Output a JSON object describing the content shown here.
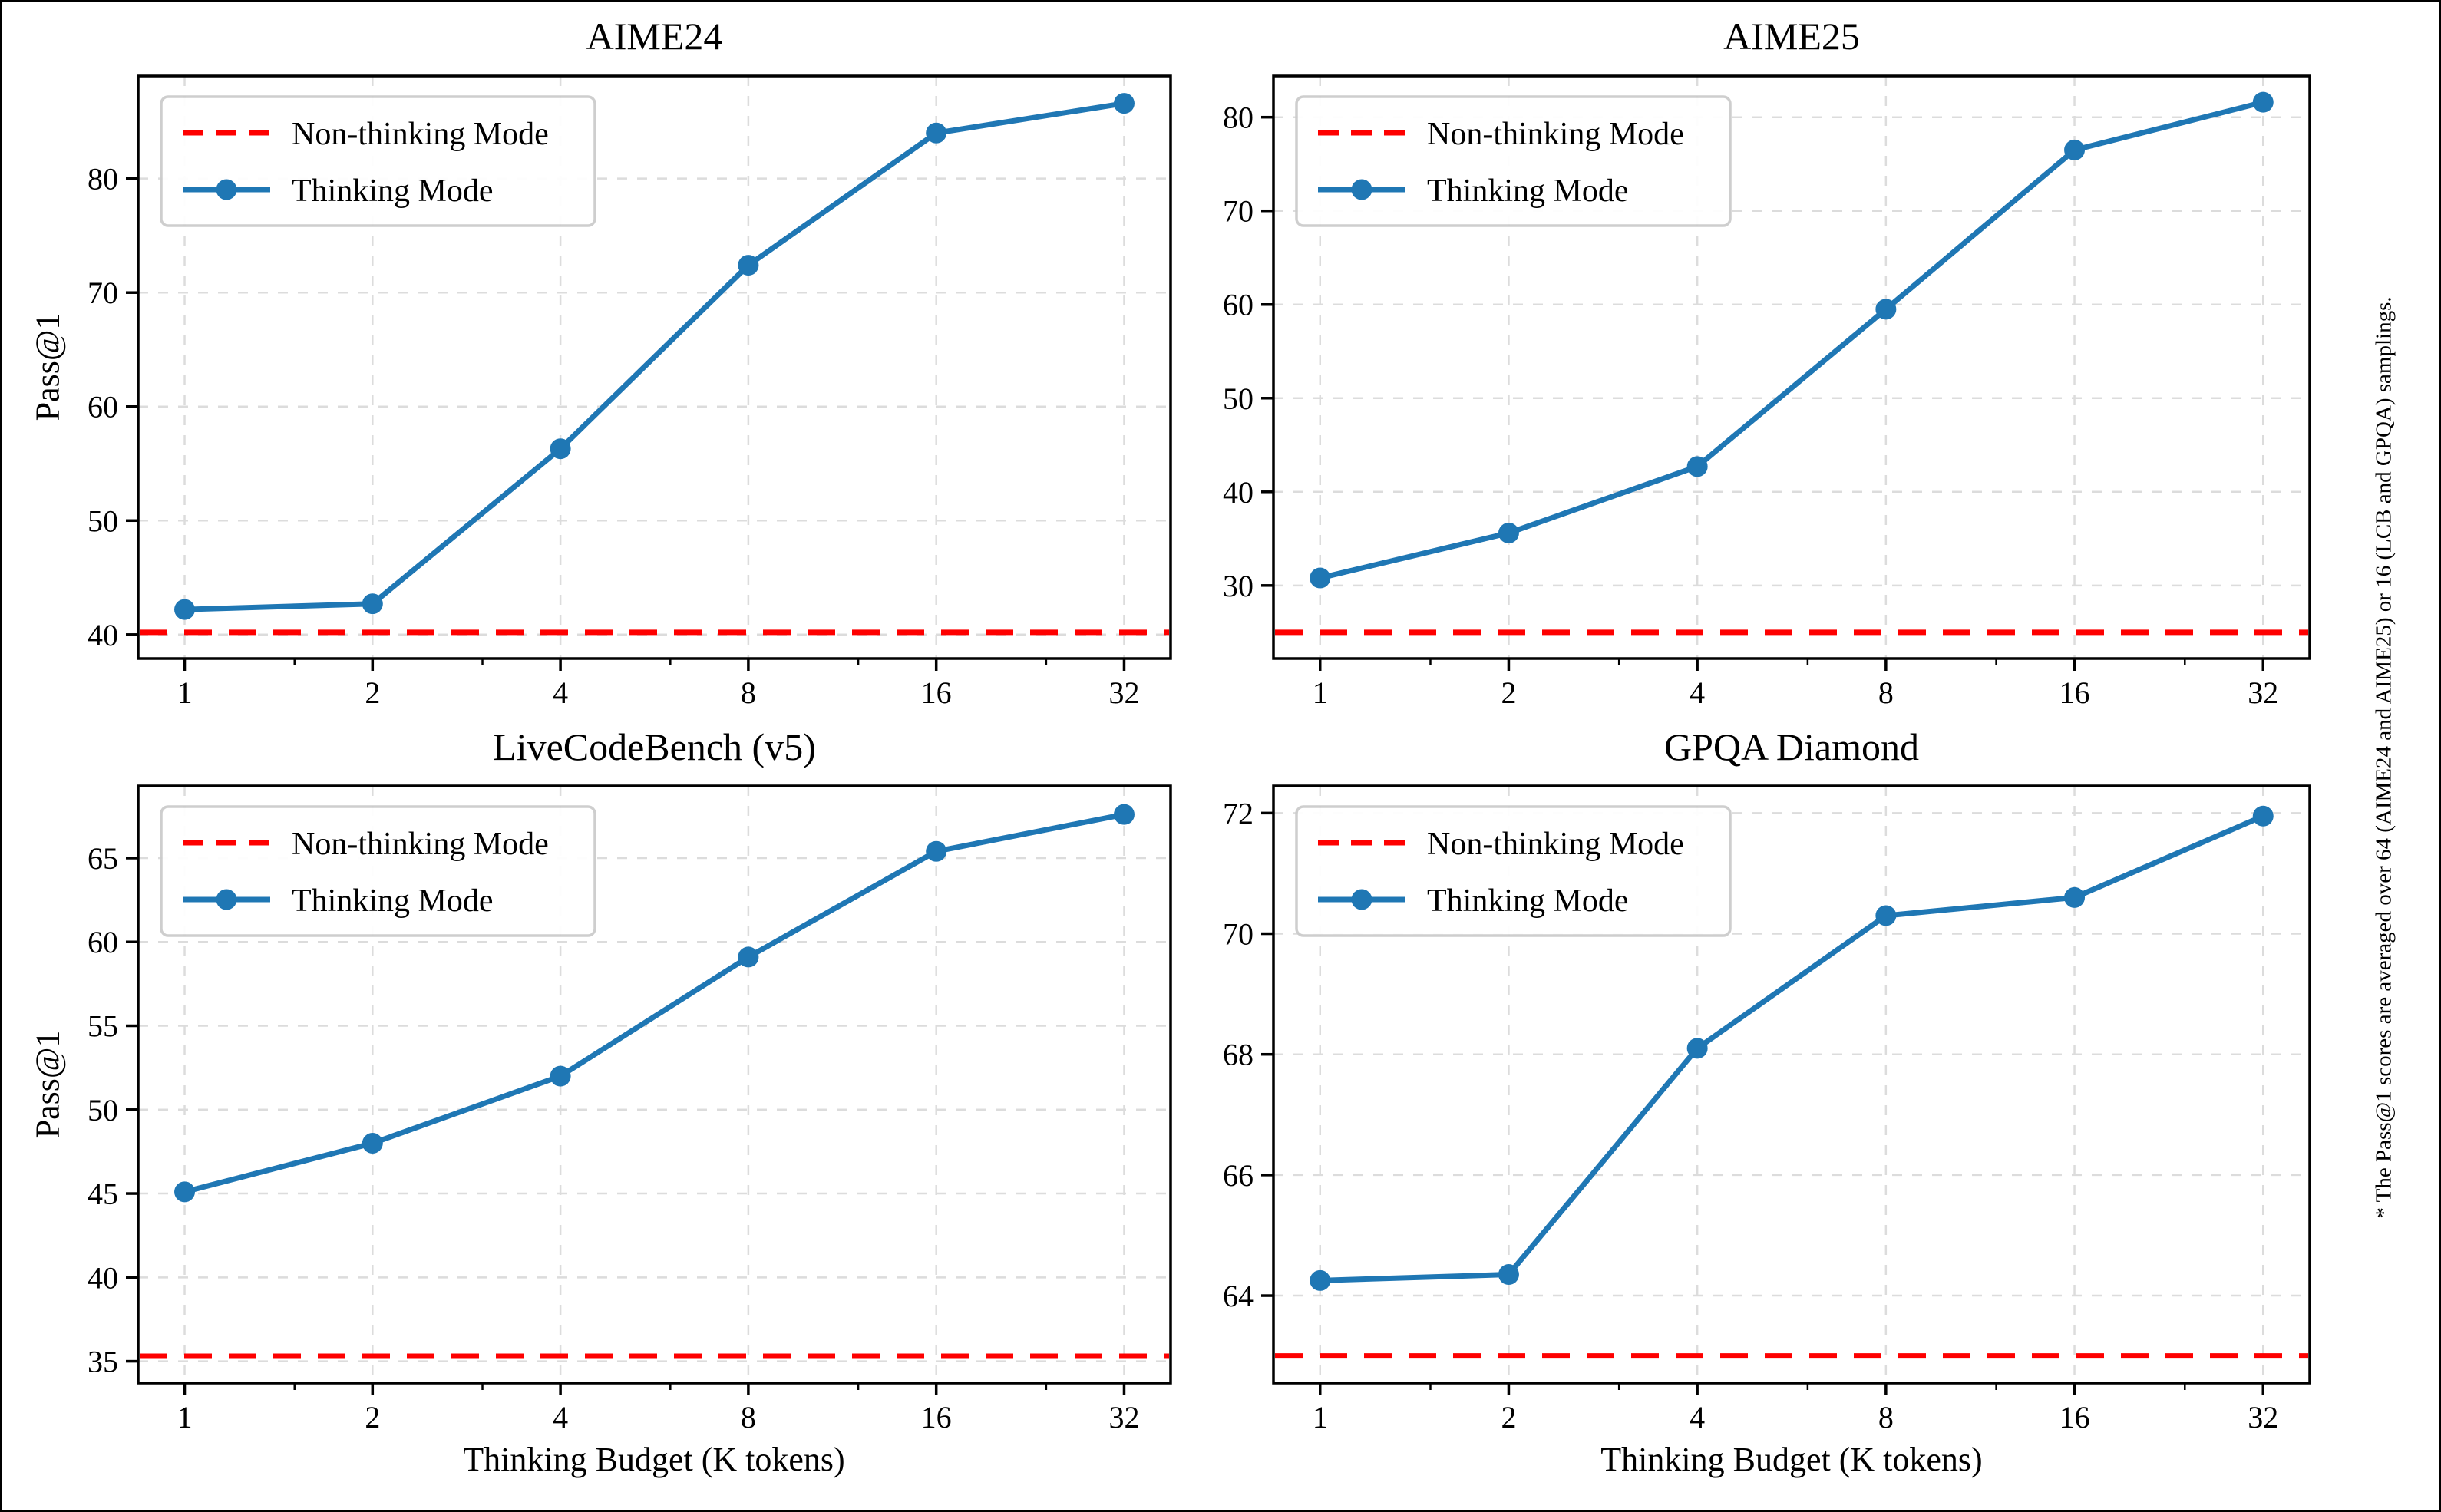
{
  "figure": {
    "caption": "* The Pass@1 scores are averaged over 64 (AIME24 and AIME25) or 16 (LCB and GPQA) samplings.",
    "ylabel": "Pass@1",
    "xlabel": "Thinking Budget (K tokens)"
  },
  "legend": {
    "non_thinking": "Non-thinking Mode",
    "thinking": "Thinking Mode"
  },
  "colors": {
    "thinking_line": "#1f77b4",
    "non_thinking_line": "#fe0000",
    "grid": "#dcdcdc",
    "axis": "#000000",
    "legend_border": "#cccccc",
    "background": "#ffffff"
  },
  "chart_data": [
    {
      "type": "line",
      "title": "AIME24",
      "ylabel": "Pass@1",
      "xscale": "log2",
      "grid": true,
      "legend_position": "upper left",
      "x": [
        1,
        2,
        4,
        8,
        16,
        32
      ],
      "xticklabels": [
        "1",
        "2",
        "4",
        "8",
        "16",
        "32"
      ],
      "series": [
        {
          "name": "Thinking Mode",
          "style": "solid-circle-markers",
          "values": [
            42.2,
            42.7,
            56.3,
            72.4,
            84.0,
            86.6
          ]
        },
        {
          "name": "Non-thinking Mode",
          "style": "dashed-horizontal-baseline",
          "value": 40.2
        }
      ],
      "yticks": [
        40,
        50,
        60,
        70,
        80
      ],
      "ylim": [
        37.9,
        89.0
      ]
    },
    {
      "type": "line",
      "title": "AIME25",
      "xscale": "log2",
      "grid": true,
      "legend_position": "upper left",
      "x": [
        1,
        2,
        4,
        8,
        16,
        32
      ],
      "xticklabels": [
        "1",
        "2",
        "4",
        "8",
        "16",
        "32"
      ],
      "series": [
        {
          "name": "Thinking Mode",
          "style": "solid-circle-markers",
          "values": [
            30.8,
            35.6,
            42.7,
            59.5,
            76.5,
            81.6
          ]
        },
        {
          "name": "Non-thinking Mode",
          "style": "dashed-horizontal-baseline",
          "value": 25.0
        }
      ],
      "yticks": [
        30,
        40,
        50,
        60,
        70,
        80
      ],
      "ylim": [
        22.2,
        84.4
      ]
    },
    {
      "type": "line",
      "title": "LiveCodeBench (v5)",
      "ylabel": "Pass@1",
      "xlabel": "Thinking Budget (K tokens)",
      "xscale": "log2",
      "grid": true,
      "legend_position": "upper left",
      "x": [
        1,
        2,
        4,
        8,
        16,
        32
      ],
      "xticklabels": [
        "1",
        "2",
        "4",
        "8",
        "16",
        "32"
      ],
      "series": [
        {
          "name": "Thinking Mode",
          "style": "solid-circle-markers",
          "values": [
            45.1,
            48.0,
            52.0,
            59.1,
            65.4,
            67.6
          ]
        },
        {
          "name": "Non-thinking Mode",
          "style": "dashed-horizontal-baseline",
          "value": 35.3
        }
      ],
      "yticks": [
        35,
        40,
        45,
        50,
        55,
        60,
        65
      ],
      "ylim": [
        33.7,
        69.3
      ]
    },
    {
      "type": "line",
      "title": "GPQA Diamond",
      "xlabel": "Thinking Budget (K tokens)",
      "xscale": "log2",
      "grid": true,
      "legend_position": "upper left",
      "x": [
        1,
        2,
        4,
        8,
        16,
        32
      ],
      "xticklabels": [
        "1",
        "2",
        "4",
        "8",
        "16",
        "32"
      ],
      "series": [
        {
          "name": "Thinking Mode",
          "style": "solid-circle-markers",
          "values": [
            64.25,
            64.35,
            68.1,
            70.3,
            70.6,
            71.95
          ]
        },
        {
          "name": "Non-thinking Mode",
          "style": "dashed-horizontal-baseline",
          "value": 63.0
        }
      ],
      "yticks": [
        64,
        66,
        68,
        70,
        72
      ],
      "ylim": [
        62.55,
        72.45
      ]
    }
  ]
}
